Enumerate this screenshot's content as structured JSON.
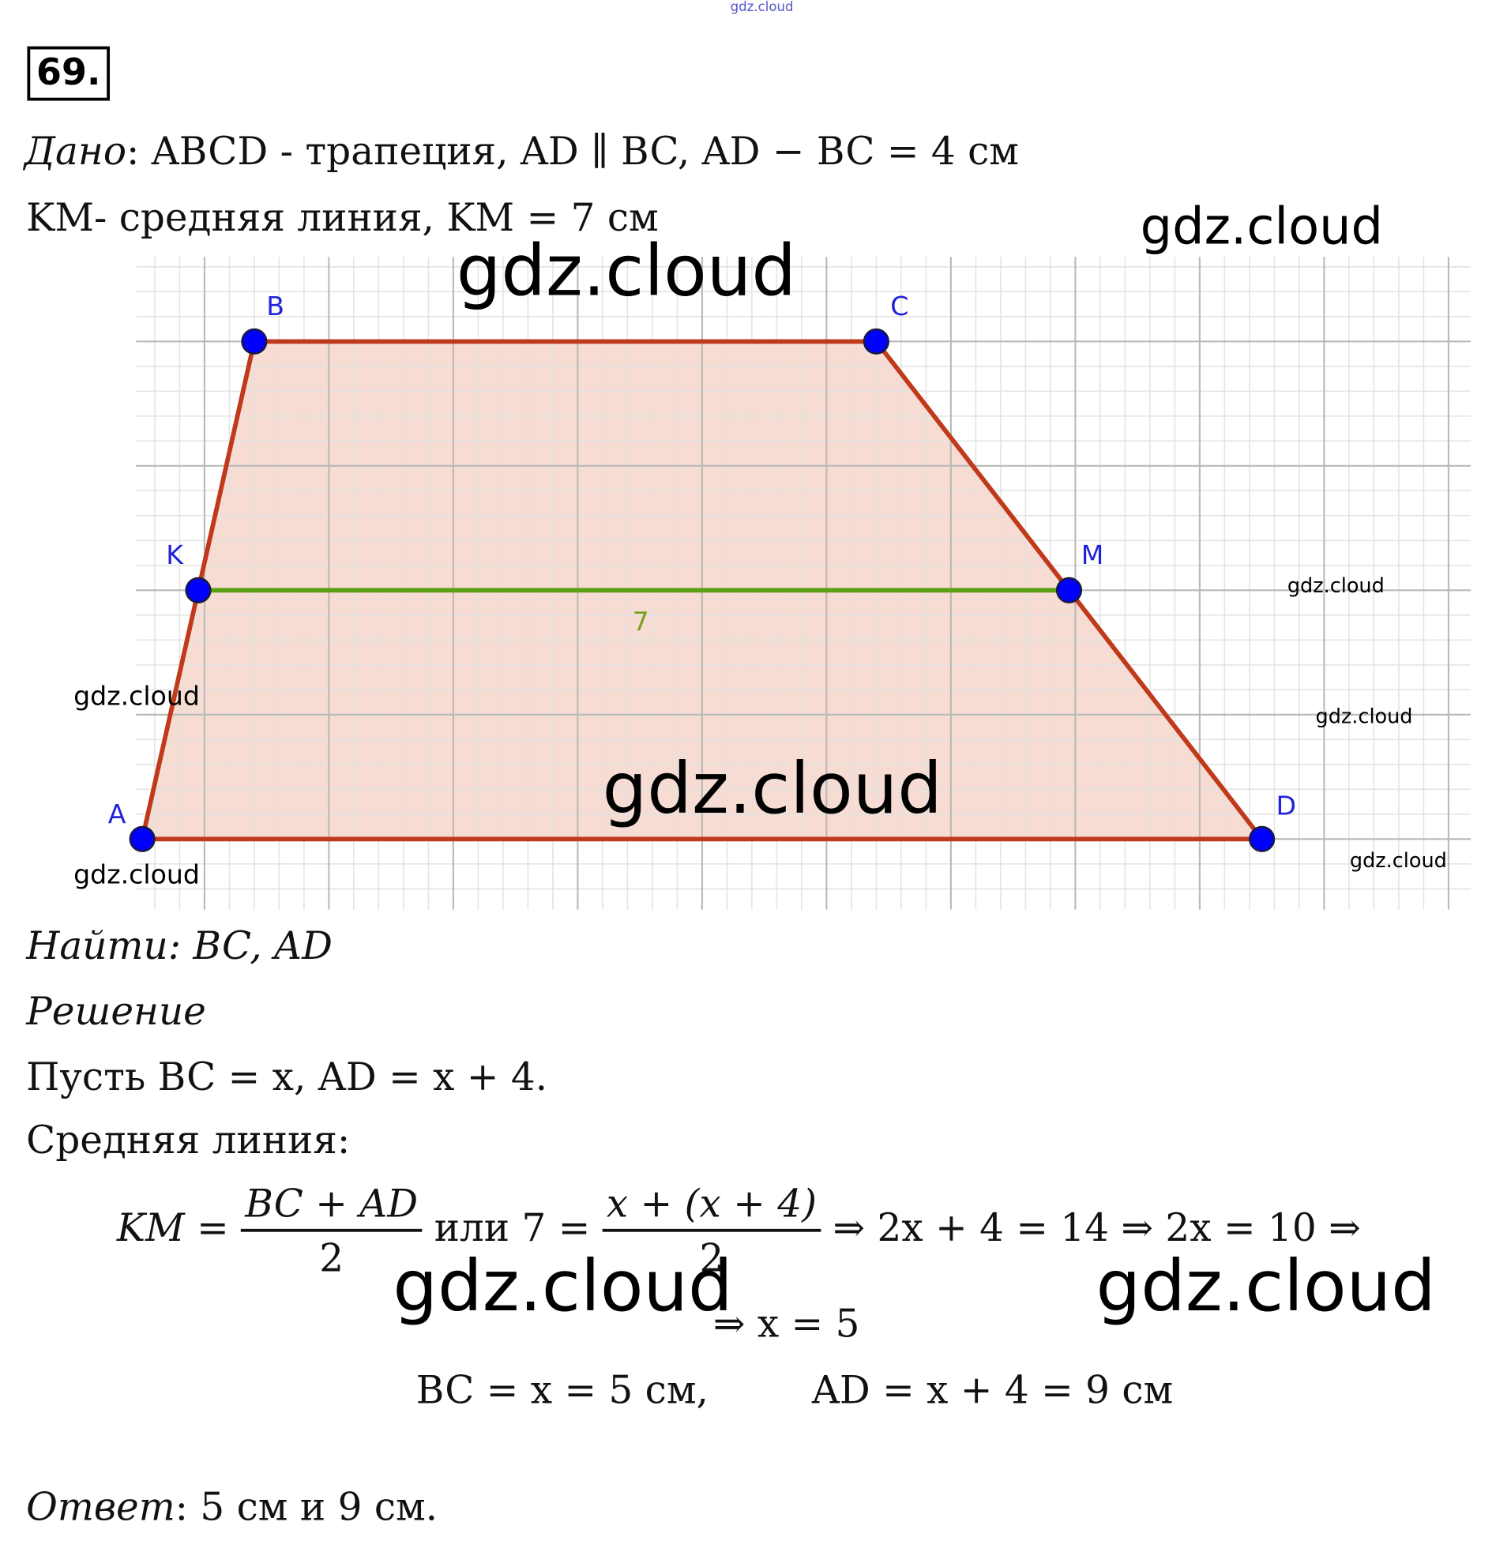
{
  "problem_number": "69.",
  "watermark": "gdz.cloud",
  "given": {
    "label": "Дано",
    "line1": ": ABCD - трапеция, AD ∥ BC,  AD − BC = 4 см",
    "line2": "KM- средняя линия, KM = 7 см"
  },
  "figure": {
    "points": [
      {
        "label": "A",
        "x": 0.5,
        "y": 0
      },
      {
        "label": "B",
        "x": 1.4,
        "y": 4
      },
      {
        "label": "C",
        "x": 6.4,
        "y": 4
      },
      {
        "label": "D",
        "x": 9.5,
        "y": 0
      },
      {
        "label": "K",
        "x": 0.95,
        "y": 2
      },
      {
        "label": "M",
        "x": 7.95,
        "y": 2
      }
    ],
    "midline_label": "7",
    "colors": {
      "side": "#c0391b",
      "fill": "#f6dcd2",
      "midline": "#5a9e12",
      "point": "#0000ff",
      "label": "#2222dd",
      "midline_text": "#7aa020",
      "grid_major": "#b8b8b8",
      "grid_minor": "#e2e2e2"
    }
  },
  "find": {
    "label": "Найти",
    "text": ": BC, AD"
  },
  "solution": {
    "label": "Решение",
    "let": "Пусть BC = x,  AD = x + 4.",
    "midline_title": "Средняя линия:",
    "eq_lhs": "KM =",
    "frac1_num": "BC + AD",
    "frac1_den": "2",
    "or_text": "или 7 =",
    "frac2_num": "x + (x + 4)",
    "frac2_den": "2",
    "eq_chain": "⇒ 2x + 4 = 14 ⇒ 2x = 10 ⇒",
    "eq_result": "⇒ x = 5",
    "bc_result": "BC = x = 5 см,",
    "ad_result": "AD = x + 4 = 9 см"
  },
  "answer": {
    "label": "Ответ",
    "text": ": 5 см и 9 см."
  }
}
